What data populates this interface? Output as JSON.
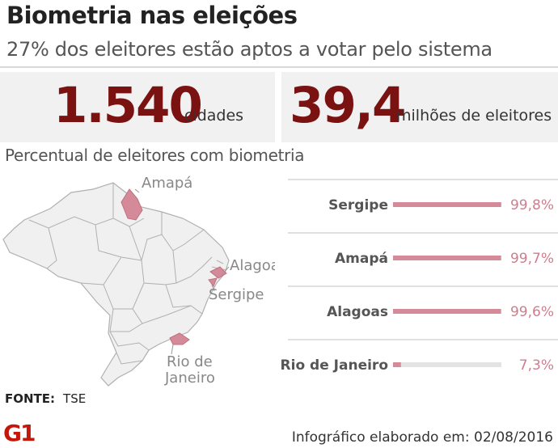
{
  "header": {
    "title": "Biometria nas eleições",
    "subtitle": "27% dos eleitores estão aptos a votar pelo sistema"
  },
  "stats": [
    {
      "value": "1.540",
      "label": "cidades"
    },
    {
      "value": "39,4",
      "label": "milhões de eleitores"
    }
  ],
  "map": {
    "labels": [
      "Amapá",
      "Alagoas",
      "Sergipe",
      "Rio de",
      "Janeiro"
    ]
  },
  "chart_data": {
    "type": "bar",
    "orientation": "horizontal",
    "title": "Percentual de eleitores com biometria",
    "categories": [
      "Sergipe",
      "Amapá",
      "Alagoas",
      "Rio de Janeiro"
    ],
    "values": [
      99.8,
      99.7,
      99.6,
      7.3
    ],
    "value_labels": [
      "99,8%",
      "99,7%",
      "99,6%",
      "7,3%"
    ],
    "xlim": [
      0,
      100
    ],
    "unit": "%"
  },
  "colors": {
    "accent": "#7a1212",
    "bar": "#d48a98",
    "track": "#e3e3e3",
    "value_text": "#cf7d8e",
    "map_fill": "#f0f0f0",
    "map_highlight": "#d48a98",
    "logo": "#c4170c"
  },
  "footer": {
    "source_label": "FONTE:",
    "source_value": "TSE",
    "logo_text": "G1",
    "credit": "Infográfico elaborado em: 02/08/2016"
  }
}
